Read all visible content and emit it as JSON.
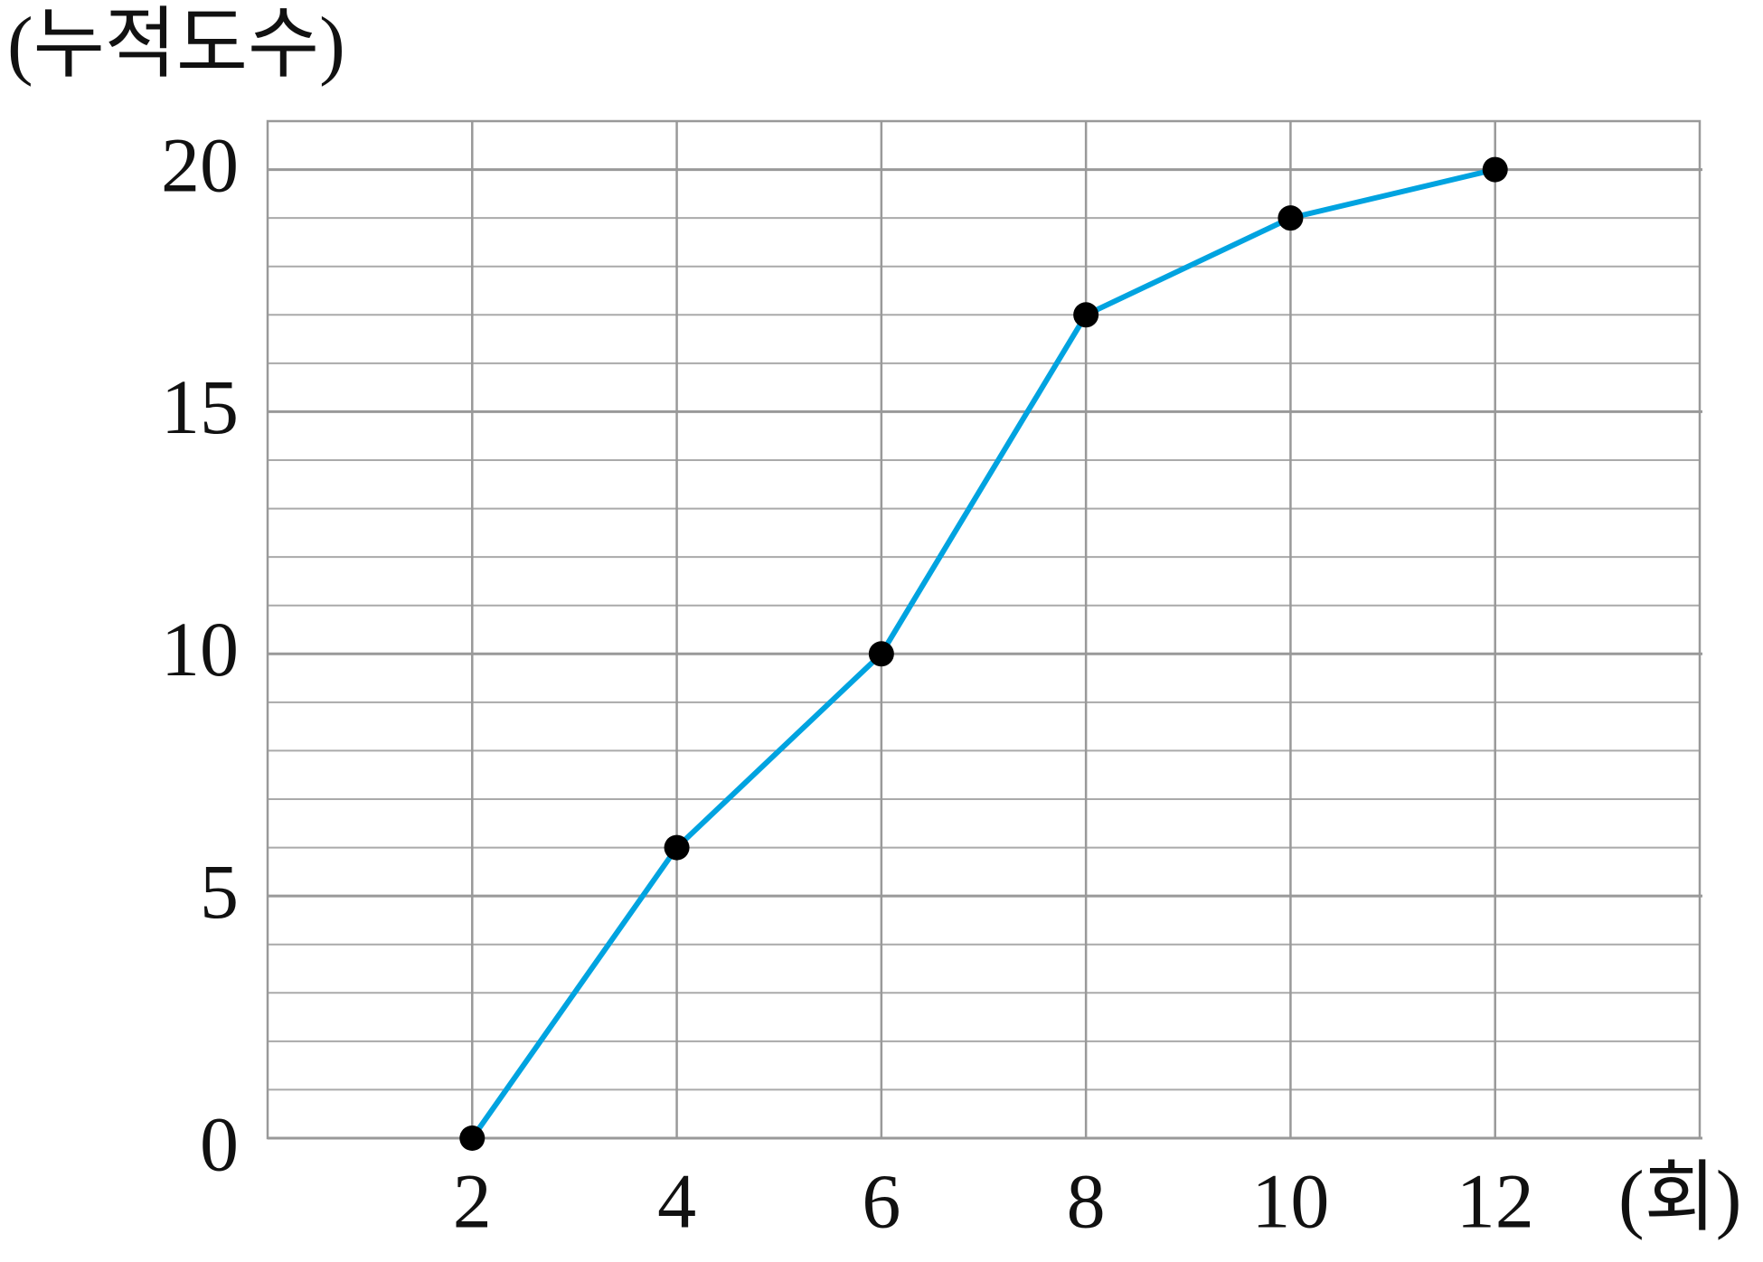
{
  "chart_data": {
    "type": "line",
    "y_label": "(누적도수)",
    "x_label": "(회)",
    "x": [
      2,
      4,
      6,
      8,
      10,
      12
    ],
    "series": [
      {
        "color": "#00a3e0",
        "values": [
          0,
          6,
          10,
          17,
          19,
          20
        ]
      }
    ],
    "xlim": [
      0,
      14
    ],
    "xticks": [
      2,
      4,
      6,
      8,
      10,
      12
    ],
    "ylim": [
      0,
      21
    ],
    "yticks": [
      0,
      5,
      10,
      15,
      20
    ],
    "grid": true,
    "minor_grid": true
  }
}
